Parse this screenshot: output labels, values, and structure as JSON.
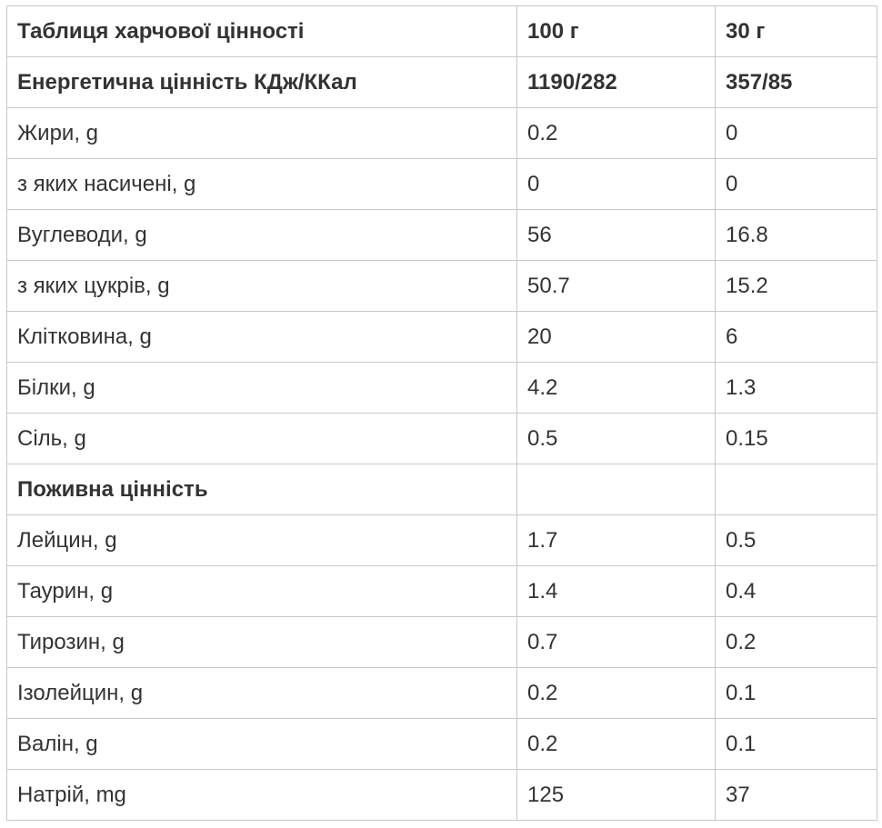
{
  "table": {
    "header": {
      "label": "Таблиця харчової цінності",
      "col_100g": "100 г",
      "col_30g": "30 г"
    },
    "rows": [
      {
        "label": "Енергетична цінність КДж/ККал",
        "v100": "1190/282",
        "v30": "357/85",
        "bold": true
      },
      {
        "label": "Жири, g",
        "v100": "0.2",
        "v30": "0"
      },
      {
        "label": "з яких насичені, g",
        "v100": "0",
        "v30": "0"
      },
      {
        "label": "Вуглеводи, g",
        "v100": "56",
        "v30": "16.8"
      },
      {
        "label": "з яких цукрів, g",
        "v100": "50.7",
        "v30": "15.2"
      },
      {
        "label": "Клітковина, g",
        "v100": "20",
        "v30": "6"
      },
      {
        "label": "Білки, g",
        "v100": "4.2",
        "v30": "1.3"
      },
      {
        "label": "Сіль, g",
        "v100": "0.5",
        "v30": "0.15"
      },
      {
        "label": "Поживна цінність",
        "v100": "",
        "v30": "",
        "bold": true
      },
      {
        "label": "Лейцин, g",
        "v100": "1.7",
        "v30": "0.5"
      },
      {
        "label": "Таурин, g",
        "v100": "1.4",
        "v30": "0.4"
      },
      {
        "label": "Тирозин, g",
        "v100": "0.7",
        "v30": "0.2"
      },
      {
        "label": "Ізолейцин, g",
        "v100": "0.2",
        "v30": "0.1"
      },
      {
        "label": "Валін, g",
        "v100": "0.2",
        "v30": "0.1"
      },
      {
        "label": "Натрій, mg",
        "v100": "125",
        "v30": "37"
      }
    ]
  }
}
